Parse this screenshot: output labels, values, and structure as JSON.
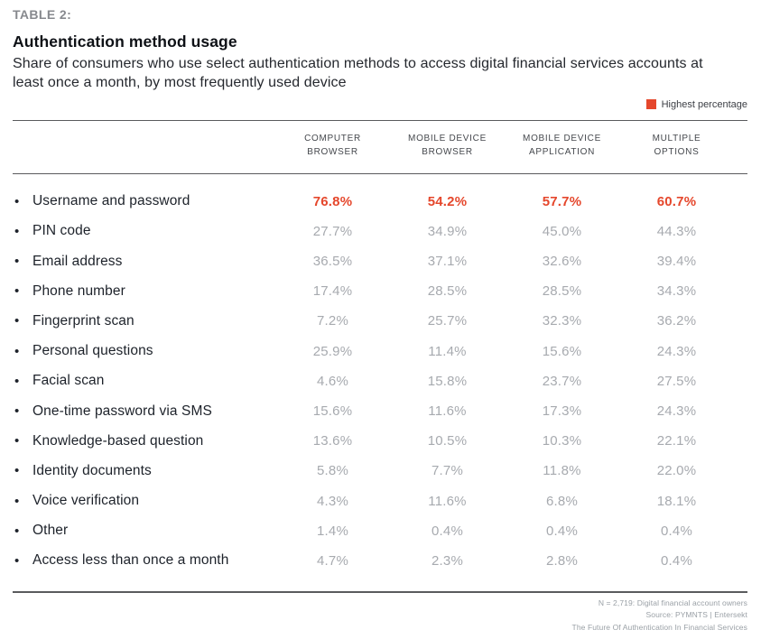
{
  "colors": {
    "accent": "#e5472c"
  },
  "header": {
    "table_label": "TABLE 2:",
    "title": "Authentication method usage",
    "subtitle": "Share of consumers who use select authentication methods to access digital financial services accounts at least once a month, by most frequently used device",
    "legend": {
      "label": "Highest percentage",
      "color": "#e5472c"
    }
  },
  "table": {
    "columns": [
      {
        "line1": "COMPUTER",
        "line2": "BROWSER"
      },
      {
        "line1": "MOBILE DEVICE",
        "line2": "BROWSER"
      },
      {
        "line1": "MOBILE DEVICE",
        "line2": "APPLICATION"
      },
      {
        "line1": "MULTIPLE",
        "line2": "OPTIONS"
      }
    ],
    "rows": [
      {
        "label": "Username and password",
        "values": [
          "76.8%",
          "54.2%",
          "57.7%",
          "60.7%"
        ],
        "highlight": true
      },
      {
        "label": "PIN code",
        "values": [
          "27.7%",
          "34.9%",
          "45.0%",
          "44.3%"
        ],
        "highlight": false
      },
      {
        "label": "Email address",
        "values": [
          "36.5%",
          "37.1%",
          "32.6%",
          "39.4%"
        ],
        "highlight": false
      },
      {
        "label": "Phone number",
        "values": [
          "17.4%",
          "28.5%",
          "28.5%",
          "34.3%"
        ],
        "highlight": false
      },
      {
        "label": "Fingerprint scan",
        "values": [
          "7.2%",
          "25.7%",
          "32.3%",
          "36.2%"
        ],
        "highlight": false
      },
      {
        "label": "Personal questions",
        "values": [
          "25.9%",
          "11.4%",
          "15.6%",
          "24.3%"
        ],
        "highlight": false
      },
      {
        "label": "Facial scan",
        "values": [
          "4.6%",
          "15.8%",
          "23.7%",
          "27.5%"
        ],
        "highlight": false
      },
      {
        "label": "One-time password via SMS",
        "values": [
          "15.6%",
          "11.6%",
          "17.3%",
          "24.3%"
        ],
        "highlight": false
      },
      {
        "label": "Knowledge-based question",
        "values": [
          "13.6%",
          "10.5%",
          "10.3%",
          "22.1%"
        ],
        "highlight": false
      },
      {
        "label": "Identity documents",
        "values": [
          "5.8%",
          "7.7%",
          "11.8%",
          "22.0%"
        ],
        "highlight": false
      },
      {
        "label": "Voice verification",
        "values": [
          "4.3%",
          "11.6%",
          "6.8%",
          "18.1%"
        ],
        "highlight": false
      },
      {
        "label": "Other",
        "values": [
          "1.4%",
          "0.4%",
          "0.4%",
          "0.4%"
        ],
        "highlight": false
      },
      {
        "label": "Access less than once a month",
        "values": [
          "4.7%",
          "2.3%",
          "2.8%",
          "0.4%"
        ],
        "highlight": false
      }
    ]
  },
  "footer": {
    "lines": [
      "N = 2,719: Digital financial account owners",
      "Source: PYMNTS  |  Entersekt",
      "The Future Of Authentication In Financial Services"
    ]
  },
  "chart_data": {
    "type": "table",
    "title": "Authentication method usage",
    "subtitle": "Share of consumers who use select authentication methods to access digital financial services accounts at least once a month, by most frequently used device",
    "columns": [
      "Computer browser",
      "Mobile device browser",
      "Mobile device application",
      "Multiple options"
    ],
    "unit": "percent",
    "legend": "Highest percentage (shown in red)",
    "rows": [
      {
        "label": "Username and password",
        "values": [
          76.8,
          54.2,
          57.7,
          60.7
        ],
        "highest": true
      },
      {
        "label": "PIN code",
        "values": [
          27.7,
          34.9,
          45.0,
          44.3
        ]
      },
      {
        "label": "Email address",
        "values": [
          36.5,
          37.1,
          32.6,
          39.4
        ]
      },
      {
        "label": "Phone number",
        "values": [
          17.4,
          28.5,
          28.5,
          34.3
        ]
      },
      {
        "label": "Fingerprint scan",
        "values": [
          7.2,
          25.7,
          32.3,
          36.2
        ]
      },
      {
        "label": "Personal questions",
        "values": [
          25.9,
          11.4,
          15.6,
          24.3
        ]
      },
      {
        "label": "Facial scan",
        "values": [
          4.6,
          15.8,
          23.7,
          27.5
        ]
      },
      {
        "label": "One-time password via SMS",
        "values": [
          15.6,
          11.6,
          17.3,
          24.3
        ]
      },
      {
        "label": "Knowledge-based question",
        "values": [
          13.6,
          10.5,
          10.3,
          22.1
        ]
      },
      {
        "label": "Identity documents",
        "values": [
          5.8,
          7.7,
          11.8,
          22.0
        ]
      },
      {
        "label": "Voice verification",
        "values": [
          4.3,
          11.6,
          6.8,
          18.1
        ]
      },
      {
        "label": "Other",
        "values": [
          1.4,
          0.4,
          0.4,
          0.4
        ]
      },
      {
        "label": "Access less than once a month",
        "values": [
          4.7,
          2.3,
          2.8,
          0.4
        ]
      }
    ],
    "source": "N = 2,719: Digital financial account owners; Source: PYMNTS | Entersekt; The Future Of Authentication In Financial Services"
  }
}
